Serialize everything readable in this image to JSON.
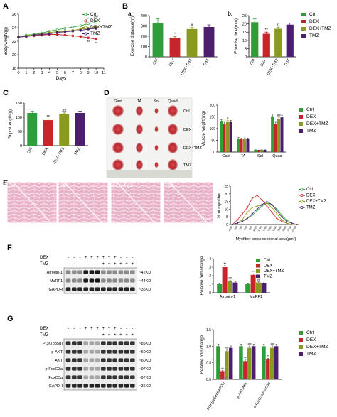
{
  "colors": {
    "ctrl": "#2e9e3a",
    "dex": "#c8252b",
    "dextmz": "#8a9a1e",
    "tmz": "#4b1f6e"
  },
  "legend": [
    "Ctrl",
    "DEX",
    "DEX+TMZ",
    "TMZ"
  ],
  "groups4": [
    "Ctrl",
    "DEX",
    "DEX+TMZ",
    "TMZ"
  ],
  "panels": {
    "A": "A",
    "B": "B",
    "Ba": "a.",
    "Bb": "b.",
    "C": "C",
    "D": "D",
    "E": "E",
    "F": "F",
    "G": "G"
  },
  "chart_data": [
    {
      "id": "A",
      "type": "line",
      "xlabel": "Days",
      "ylabel": "Body weight(g)",
      "xlim": [
        0,
        11
      ],
      "ylim": [
        18,
        26
      ],
      "xticks": [
        "0",
        "1",
        "2",
        "3",
        "4",
        "5",
        "6",
        "7",
        "8",
        "9",
        "10",
        "11"
      ],
      "yticks": [
        "18",
        "20",
        "22",
        "24",
        "26"
      ],
      "annotations": [
        "*",
        "##",
        "**",
        "**"
      ],
      "x": [
        0,
        1,
        2,
        3,
        4,
        5,
        6,
        7,
        8,
        9,
        10
      ],
      "series": [
        {
          "name": "Ctrl",
          "values": [
            22.6,
            22.9,
            23.0,
            23.2,
            23.5,
            23.7,
            23.9,
            24.1,
            24.3,
            24.6,
            24.8
          ]
        },
        {
          "name": "DEX",
          "values": [
            22.6,
            22.7,
            22.8,
            22.9,
            23.0,
            23.0,
            22.9,
            22.8,
            22.7,
            22.5,
            22.3
          ]
        },
        {
          "name": "DEX+TMZ",
          "values": [
            22.6,
            22.8,
            22.9,
            23.1,
            23.3,
            23.4,
            23.5,
            23.6,
            23.8,
            23.9,
            24.1
          ]
        },
        {
          "name": "TMZ",
          "values": [
            22.6,
            22.7,
            22.9,
            23.0,
            23.1,
            23.3,
            23.4,
            23.5,
            23.6,
            23.8,
            23.9
          ]
        }
      ]
    },
    {
      "id": "Ba",
      "type": "bar",
      "ylabel": "Exercise distance(m)",
      "ylim": [
        0,
        400
      ],
      "yticks": [
        "0",
        "100",
        "200",
        "300",
        "400"
      ],
      "categories": [
        "Ctrl",
        "DEX",
        "DEX+TMZ",
        "TMZ"
      ],
      "values": [
        330,
        185,
        270,
        290
      ],
      "errors": [
        40,
        15,
        15,
        20
      ],
      "labels": [
        "",
        "*",
        "#",
        ""
      ]
    },
    {
      "id": "Bb",
      "type": "bar",
      "ylabel": "Exercise time(min)",
      "ylim": [
        0,
        25
      ],
      "yticks": [
        "0",
        "5",
        "10",
        "15",
        "20",
        "25"
      ],
      "categories": [
        "Ctrl",
        "DEX",
        "DEX+TMZ",
        "TMZ"
      ],
      "values": [
        21,
        14,
        17,
        19.5
      ],
      "errors": [
        2,
        1,
        1,
        1
      ],
      "labels": [
        "",
        "**",
        "c",
        ""
      ]
    },
    {
      "id": "C",
      "type": "bar",
      "ylabel": "Grip strength(g)",
      "ylim": [
        0,
        150
      ],
      "yticks": [
        "0",
        "50",
        "100",
        "150"
      ],
      "categories": [
        "Ctrl",
        "DEX",
        "DEX+TMZ",
        "TMZ"
      ],
      "values": [
        115,
        90,
        110,
        115
      ],
      "errors": [
        6,
        4,
        5,
        6
      ],
      "labels": [
        "",
        "**",
        "##",
        ""
      ]
    },
    {
      "id": "D",
      "type": "bar",
      "ylabel": "Muscle weight(mg)",
      "ylim": [
        0,
        200
      ],
      "yticks": [
        "0",
        "50",
        "100",
        "150",
        "200"
      ],
      "categories": [
        "Gast",
        "TA",
        "Sol",
        "Quad"
      ],
      "series": [
        {
          "name": "Ctrl",
          "values": [
            130,
            58,
            9,
            152
          ]
        },
        {
          "name": "DEX",
          "values": [
            120,
            55,
            8,
            120
          ]
        },
        {
          "name": "DEX+TMZ",
          "values": [
            128,
            57,
            9,
            140
          ]
        },
        {
          "name": "TMZ",
          "values": [
            128,
            56,
            9,
            148
          ]
        }
      ],
      "labels": [
        "#",
        "##"
      ]
    },
    {
      "id": "E",
      "type": "line",
      "xlabel": "Myofiber cross sectional area(μm²)",
      "ylabel": "% of myofiber",
      "ylim": [
        0,
        25
      ],
      "yticks": [
        "0",
        "5",
        "10",
        "15",
        "20",
        "25"
      ],
      "categories": [
        "<200",
        "200",
        "400",
        "600",
        "800",
        "1000",
        "1200",
        "1400",
        "1600",
        "1800",
        "2000",
        "2200",
        "2400",
        ">2400"
      ],
      "series": [
        {
          "name": "Ctrl",
          "values": [
            0,
            1,
            2,
            4,
            6,
            9,
            12,
            14,
            13,
            10,
            6,
            3,
            1,
            0
          ]
        },
        {
          "name": "DEX",
          "values": [
            0,
            3,
            7,
            11,
            17,
            19,
            16,
            12,
            8,
            4,
            2,
            1,
            0,
            0
          ]
        },
        {
          "name": "DEX+TMZ",
          "values": [
            0,
            1,
            3,
            8,
            11,
            12,
            13,
            14,
            11,
            7,
            3,
            1,
            0,
            0
          ]
        },
        {
          "name": "TMZ",
          "values": [
            0,
            1,
            2,
            4,
            7,
            10,
            13,
            15,
            13,
            9,
            5,
            2,
            1,
            0
          ]
        }
      ]
    },
    {
      "id": "F",
      "type": "bar",
      "ylabel": "Relative fold change",
      "ylim": [
        0,
        4
      ],
      "yticks": [
        "0",
        "1",
        "2",
        "3",
        "4"
      ],
      "categories": [
        "Atrogin-1",
        "MuRF1"
      ],
      "series": [
        {
          "name": "Ctrl",
          "values": [
            1.0,
            1.0
          ]
        },
        {
          "name": "DEX",
          "values": [
            3.0,
            2.1
          ]
        },
        {
          "name": "DEX+TMZ",
          "values": [
            1.4,
            1.2
          ]
        },
        {
          "name": "TMZ",
          "values": [
            1.2,
            1.1
          ]
        }
      ],
      "labels": [
        "**",
        "##",
        "**",
        "##"
      ]
    },
    {
      "id": "G",
      "type": "bar",
      "ylabel": "Relative fold change",
      "ylim": [
        0,
        1.5
      ],
      "yticks": [
        "0.0",
        "0.5",
        "1.0",
        "1.5"
      ],
      "categories": [
        "PI3K(p85α)/GAPDH",
        "p-AKT/AKT",
        "p-FoxO3a/FoxO3a"
      ],
      "series": [
        {
          "name": "Ctrl",
          "values": [
            1.0,
            1.0,
            1.0
          ]
        },
        {
          "name": "DEX",
          "values": [
            0.25,
            0.55,
            0.6
          ]
        },
        {
          "name": "DEX+TMZ",
          "values": [
            0.85,
            0.95,
            0.95
          ]
        },
        {
          "name": "TMZ",
          "values": [
            0.95,
            1.0,
            1.0
          ]
        }
      ],
      "labels": [
        "**",
        "##",
        "**",
        "##",
        "**",
        "##"
      ]
    }
  ],
  "D_image": {
    "labels": [
      "Gast",
      "TA",
      "Sol",
      "Quad"
    ],
    "rows": [
      "Ctrl",
      "DEX",
      "DEX+TMZ",
      "TMZ"
    ]
  },
  "E_image": {
    "labels": [
      "Ctrl",
      "DEX",
      "DEX+TMZ",
      "TMZ"
    ],
    "scale": "100μm"
  },
  "F_blot": {
    "dex": [
      "-",
      "-",
      "-",
      "+",
      "+",
      "+",
      "+",
      "+",
      "+",
      "-",
      "-",
      "-"
    ],
    "tmz": [
      "-",
      "-",
      "-",
      "-",
      "-",
      "-",
      "+",
      "+",
      "+",
      "+",
      "+",
      "+"
    ],
    "rows": [
      "Atrogin-1",
      "MuRF1",
      "GAPDH"
    ],
    "sizes": [
      "~42KD",
      "~44KD",
      "~36KD"
    ],
    "row_title_dex": "DEX",
    "row_title_tmz": "TMZ"
  },
  "G_blot": {
    "dex": [
      "-",
      "-",
      "-",
      "+",
      "+",
      "+",
      "+",
      "+",
      "+",
      "-",
      "-",
      "-"
    ],
    "tmz": [
      "-",
      "-",
      "-",
      "-",
      "-",
      "-",
      "+",
      "+",
      "+",
      "+",
      "+",
      "+"
    ],
    "rows": [
      "PI3K(p85α)",
      "p-AKT",
      "AKT",
      "p-FoxO3a",
      "FoxO3a",
      "GAPDH"
    ],
    "sizes": [
      "~85KD",
      "~60KD",
      "~60KD",
      "~97KD",
      "~97KD",
      "~36KD"
    ],
    "row_title_dex": "DEX",
    "row_title_tmz": "TMZ"
  }
}
